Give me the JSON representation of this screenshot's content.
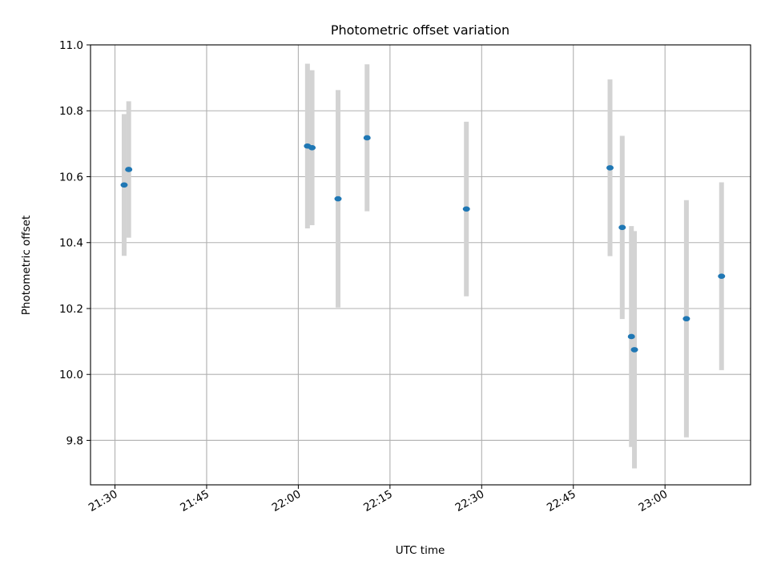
{
  "chart_data": {
    "type": "scatter",
    "title": "Photometric offset variation",
    "xlabel": "UTC time",
    "ylabel": "Photometric offset",
    "x_time_range": [
      "21:26",
      "23:14"
    ],
    "ylim": [
      9.665,
      11.0
    ],
    "grid": true,
    "x_ticks": [
      "21:30",
      "21:45",
      "22:00",
      "22:15",
      "22:30",
      "22:45",
      "23:00"
    ],
    "y_ticks": [
      9.8,
      10.0,
      10.2,
      10.4,
      10.6,
      10.8,
      11.0
    ],
    "y_tick_labels": [
      "9.8",
      "10.0",
      "10.2",
      "10.4",
      "10.6",
      "10.8",
      "11.0"
    ],
    "colors": {
      "marker": "#1f77b4",
      "errorbar": "#d3d3d3",
      "grid": "#b0b0b0"
    },
    "points": [
      {
        "time": "21:31:30",
        "y": 10.575,
        "yerr": 0.215
      },
      {
        "time": "21:32:15",
        "y": 10.622,
        "yerr": 0.207
      },
      {
        "time": "22:01:30",
        "y": 10.693,
        "yerr": 0.25
      },
      {
        "time": "22:02:15",
        "y": 10.688,
        "yerr": 0.235
      },
      {
        "time": "22:06:30",
        "y": 10.533,
        "yerr": 0.33
      },
      {
        "time": "22:11:15",
        "y": 10.718,
        "yerr": 0.223
      },
      {
        "time": "22:27:30",
        "y": 10.502,
        "yerr": 0.265
      },
      {
        "time": "22:51:00",
        "y": 10.627,
        "yerr": 0.268
      },
      {
        "time": "22:53:00",
        "y": 10.446,
        "yerr": 0.278
      },
      {
        "time": "22:54:30",
        "y": 10.115,
        "yerr": 0.335
      },
      {
        "time": "22:55:00",
        "y": 10.075,
        "yerr": 0.36
      },
      {
        "time": "23:03:30",
        "y": 10.169,
        "yerr": 0.36
      },
      {
        "time": "23:09:15",
        "y": 10.298,
        "yerr": 0.285
      }
    ]
  }
}
